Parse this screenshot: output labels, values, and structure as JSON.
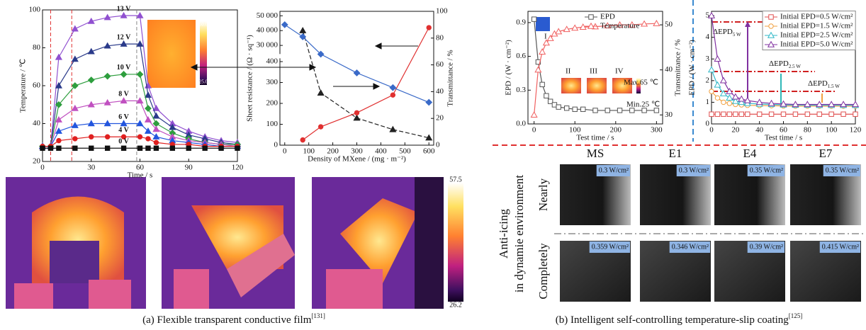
{
  "chart_data": [
    {
      "type": "line",
      "xlabel": "Time / s",
      "ylabel": "Temperature / ℃",
      "x": [
        0,
        5,
        10,
        20,
        30,
        40,
        50,
        60,
        65,
        70,
        80,
        90,
        100,
        110,
        120
      ],
      "xlim": [
        0,
        120
      ],
      "xticks": [
        0,
        30,
        60,
        90,
        120
      ],
      "ylim": [
        20,
        100
      ],
      "yticks": [
        20,
        40,
        60,
        80,
        100
      ],
      "vlines": [
        5,
        18,
        58
      ],
      "vline_colors": [
        "#e03030",
        "#e03030",
        "#888888"
      ],
      "inset_colorbar": [
        "60.0",
        "25.0"
      ],
      "series": [
        {
          "name": "13 V",
          "color": "#9050d0",
          "marker": "triangle",
          "values": [
            28,
            28,
            75,
            90,
            94,
            96,
            97,
            97,
            60,
            48,
            40,
            36,
            33,
            31,
            30
          ]
        },
        {
          "name": "12 V",
          "color": "#2a3a8a",
          "marker": "triangle",
          "values": [
            28,
            28,
            60,
            74,
            78,
            81,
            82,
            82,
            55,
            44,
            38,
            34,
            32,
            30,
            29
          ]
        },
        {
          "name": "10 V",
          "color": "#2e9e3e",
          "marker": "diamond",
          "values": [
            28,
            28,
            50,
            60,
            63,
            65,
            66,
            66,
            48,
            40,
            35,
            32,
            30,
            29,
            29
          ]
        },
        {
          "name": "8 V",
          "color": "#c050c0",
          "marker": "triangle",
          "values": [
            28,
            28,
            42,
            48,
            50,
            51,
            52,
            52,
            42,
            37,
            33,
            31,
            30,
            29,
            28
          ]
        },
        {
          "name": "6 V",
          "color": "#2255dd",
          "marker": "triangle",
          "values": [
            28,
            28,
            36,
            39,
            40,
            40,
            40,
            40,
            36,
            33,
            31,
            30,
            29,
            28,
            28
          ]
        },
        {
          "name": "4 V",
          "color": "#e02020",
          "marker": "circle",
          "values": [
            28,
            28,
            31,
            32,
            33,
            33,
            33,
            33,
            32,
            30,
            29,
            29,
            28,
            28,
            28
          ]
        },
        {
          "name": "0 V",
          "color": "#111111",
          "marker": "square",
          "values": [
            27,
            27,
            27,
            27,
            27,
            27,
            27,
            27,
            27,
            27,
            27,
            27,
            27,
            27,
            27
          ]
        }
      ]
    },
    {
      "type": "line",
      "xlabel": "Density of MXene / (mg · m⁻²)",
      "ylabel": "Sheet resistance / (Ω · sq⁻¹)",
      "y2label": "Transmittance / %",
      "x": [
        0,
        75,
        150,
        300,
        450,
        600
      ],
      "xlim": [
        -20,
        620
      ],
      "xticks": [
        0,
        100,
        200,
        300,
        400,
        500,
        600
      ],
      "ylim": [
        0,
        53000
      ],
      "ybreak": [
        410,
        25000
      ],
      "yticks": [
        0,
        100,
        200,
        300,
        400,
        {
          "value": 30000,
          "label": "30 000"
        },
        {
          "value": 40000,
          "label": "40 000"
        },
        {
          "value": 50000,
          "label": "50 000"
        }
      ],
      "y2lim": [
        0,
        100
      ],
      "y2ticks": [
        0,
        20,
        40,
        60,
        80,
        100
      ],
      "series": [
        {
          "color": "#222222",
          "marker": "triangle",
          "dashed": true,
          "values": [
            null,
            40000,
            250,
            130,
            75,
            35
          ]
        },
        {
          "color": "#e03030",
          "marker": "circle",
          "values": [
            null,
            25,
            88,
            155,
            240,
            42000
          ]
        },
        {
          "color": "#3a6ac8",
          "marker": "diamond",
          "axis": "y2",
          "values": [
            90,
            81,
            68,
            54,
            43,
            32
          ]
        }
      ]
    },
    {
      "type": "line",
      "xlabel": "Test time / s",
      "ylabel": "EPD / (W · cm⁻²)",
      "y2label": "Transmittance / %",
      "x": [
        0,
        10,
        20,
        30,
        40,
        50,
        60,
        80,
        100,
        120,
        150,
        180,
        210,
        240,
        270,
        300
      ],
      "xlim": [
        -15,
        315
      ],
      "xticks": [
        0,
        100,
        200,
        300
      ],
      "ylim": [
        0,
        1.0
      ],
      "yticks": [
        {
          "value": 0,
          "label": "0.0"
        },
        0.3,
        0.6,
        0.9
      ],
      "y2lim": [
        28,
        53
      ],
      "y2ticks": [
        30,
        40,
        50
      ],
      "legend": "top-right",
      "annotations": [
        "I",
        "II",
        "III",
        "IV",
        "Max.65 ℃",
        "Min.25 ℃"
      ],
      "series": [
        {
          "name": "EPD",
          "color": "#555555",
          "marker": "square",
          "filled": false,
          "values": [
            0.93,
            0.55,
            0.35,
            0.25,
            0.2,
            0.17,
            0.15,
            0.14,
            0.13,
            0.13,
            0.12,
            0.12,
            0.12,
            0.12,
            0.12,
            0.12
          ]
        },
        {
          "name": "Temperature",
          "color": "#f06060",
          "marker": "triangle",
          "filled": false,
          "axis": "y2",
          "values": [
            30,
            40,
            44,
            46,
            47,
            48,
            48.5,
            49,
            49.3,
            49.5,
            49.6,
            49.8,
            50,
            50,
            50.2,
            50.3
          ]
        }
      ]
    },
    {
      "type": "line",
      "xlabel": "Test time / s",
      "ylabel": "EPD / (W · cm⁻²)",
      "x": [
        0,
        5,
        10,
        15,
        20,
        25,
        30,
        40,
        50,
        60,
        70,
        80,
        90,
        100,
        110,
        120
      ],
      "xlim": [
        0,
        120
      ],
      "xticks": [
        0,
        20,
        40,
        60,
        80,
        100,
        120
      ],
      "ylim": [
        0,
        5.2
      ],
      "yticks": [
        0,
        1,
        2,
        3,
        4,
        5
      ],
      "legend": "top-right",
      "annotations": [
        {
          "text": "ΔEPD",
          "sub": "5 W"
        },
        {
          "text": "ΔEPD",
          "sub": "2.5 W"
        },
        {
          "text": "ΔEPD",
          "sub": "1.5 W"
        }
      ],
      "series": [
        {
          "name": "Initial EPD=0.5 W/cm²",
          "color": "#e05050",
          "marker": "square",
          "filled": false,
          "values": [
            0.45,
            0.45,
            0.45,
            0.45,
            0.45,
            0.45,
            0.45,
            0.45,
            0.45,
            0.45,
            0.45,
            0.45,
            0.45,
            0.45,
            0.45,
            0.45
          ]
        },
        {
          "name": "Initial EPD=1.5 W/cm²",
          "color": "#f0a040",
          "marker": "circle",
          "filled": false,
          "values": [
            1.5,
            1.2,
            1.0,
            0.95,
            0.9,
            0.88,
            0.86,
            0.85,
            0.84,
            0.83,
            0.82,
            0.82,
            0.82,
            0.82,
            0.82,
            0.82
          ]
        },
        {
          "name": "Initial EPD=2.5 W/cm²",
          "color": "#30b8c8",
          "marker": "triangle",
          "filled": false,
          "values": [
            2.5,
            1.8,
            1.4,
            1.2,
            1.05,
            1.0,
            0.95,
            0.92,
            0.9,
            0.88,
            0.87,
            0.87,
            0.86,
            0.86,
            0.86,
            0.86
          ]
        },
        {
          "name": "Initial EPD=5.0 W/cm²",
          "color": "#8030a0",
          "marker": "triangle",
          "filled": false,
          "values": [
            5.0,
            3.0,
            2.0,
            1.5,
            1.25,
            1.15,
            1.08,
            1.0,
            0.95,
            0.92,
            0.9,
            0.9,
            0.9,
            0.9,
            0.9,
            0.9
          ]
        }
      ]
    }
  ],
  "panel_a": {
    "thermal_colorbar": [
      "57.5",
      "26.2"
    ],
    "caption": "(a) Flexible transparent conductive film",
    "ref": "[131]"
  },
  "panel_b": {
    "columns": [
      "MS",
      "E1",
      "E4",
      "E7"
    ],
    "rows": [
      "Nearly",
      "Completely"
    ],
    "side_label": [
      "Anti-icing",
      "in dynamie environment"
    ],
    "values": [
      [
        "0.3 W/cm²",
        "0.3 W/cm²",
        "0.35 W/cm²",
        "0.35 W/cm²"
      ],
      [
        "0.359 W/cm²",
        "0.346 W/cm²",
        "0.39 W/cm²",
        "0.415 W/cm²"
      ]
    ],
    "caption": "(b) Intelligent self-controlling temperature-slip coating",
    "ref": "[125]"
  }
}
